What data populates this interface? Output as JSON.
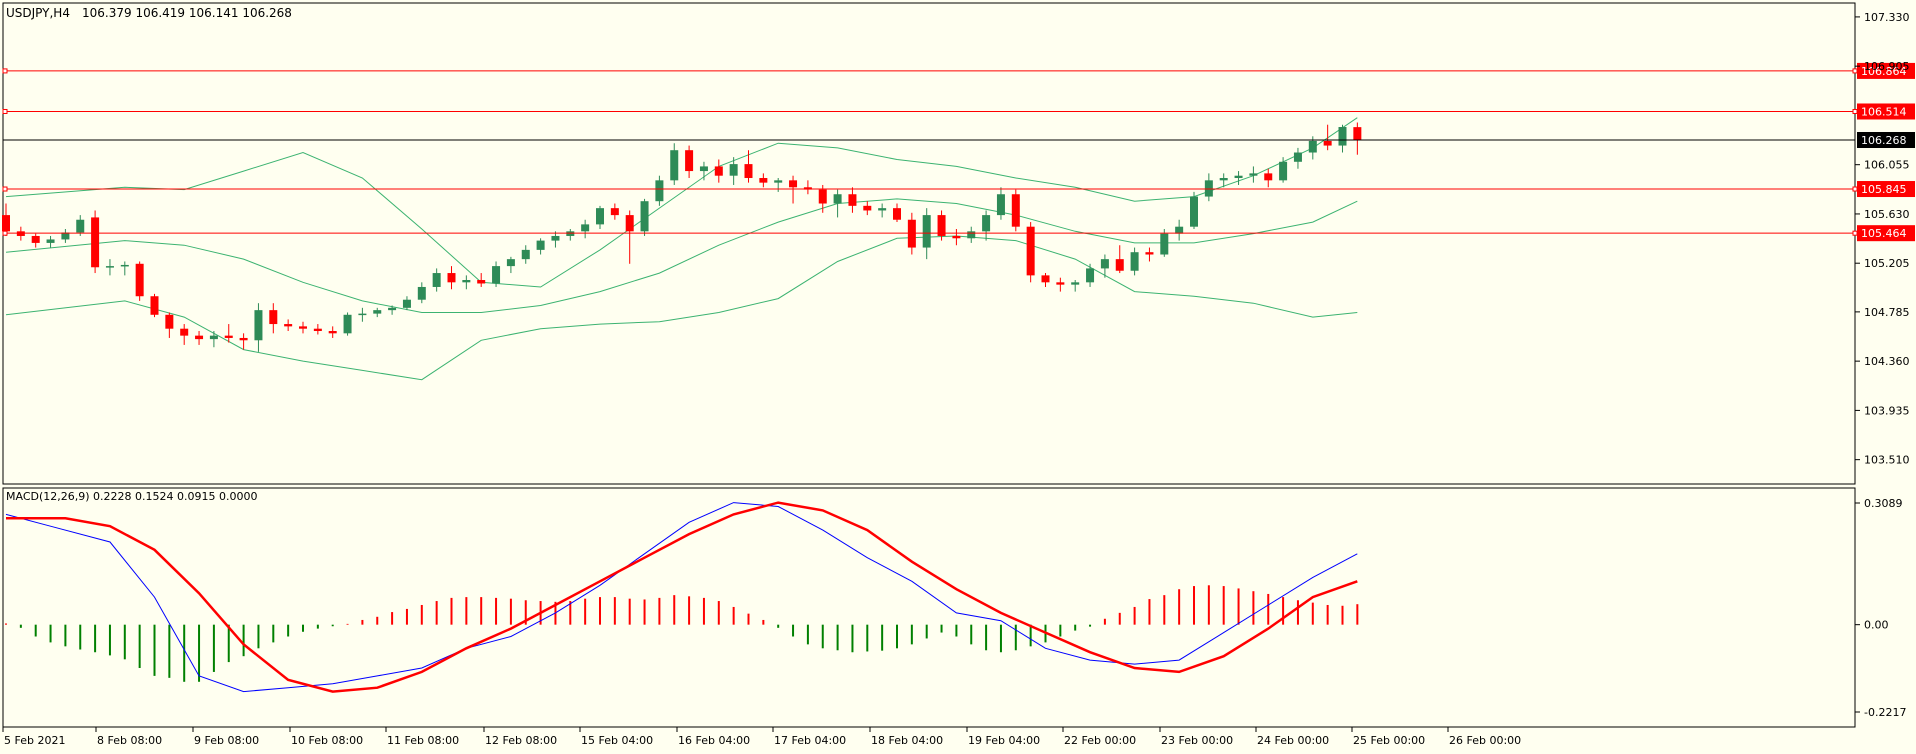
{
  "header": {
    "symbol": "USDJPY,H4",
    "ohlc": "106.379 106.419 106.141 106.268"
  },
  "macd_header": "MACD(12,26,9) 0.2228 0.1524 0.0915 0.0000",
  "colors": {
    "background": "#FFFFF0",
    "bull": "#2E8B57",
    "bear": "#FF0000",
    "band": "#3CB371",
    "macd_line": "#0000FF",
    "signal_line": "#FF0000",
    "hist_pos": "#FF0000",
    "hist_neg": "#008000",
    "level": "#FF0000",
    "current": "#000000"
  },
  "chart_data": [
    {
      "type": "candlestick",
      "title": "USDJPY,H4",
      "ylim": [
        103.3,
        107.45
      ],
      "y_ticks": [
        "107.330",
        "106.905",
        "106.055",
        "105.630",
        "105.205",
        "104.785",
        "104.360",
        "103.935",
        "103.510"
      ],
      "x_labels": [
        "5 Feb 2021",
        "8 Feb 08:00",
        "9 Feb 08:00",
        "10 Feb 08:00",
        "11 Feb 08:00",
        "12 Feb 08:00",
        "15 Feb 04:00",
        "16 Feb 04:00",
        "17 Feb 04:00",
        "18 Feb 04:00",
        "19 Feb 04:00",
        "22 Feb 00:00",
        "23 Feb 00:00",
        "24 Feb 00:00",
        "25 Feb 00:00",
        "26 Feb 00:00"
      ],
      "levels": [
        106.864,
        106.514,
        105.845,
        105.464
      ],
      "level_labels": [
        "106.864",
        "106.514",
        "105.845",
        "105.464"
      ],
      "current_price": 106.268,
      "current_label": "106.268",
      "candles": [
        [
          105.62,
          105.72,
          105.44,
          105.48
        ],
        [
          105.48,
          105.52,
          105.4,
          105.44
        ],
        [
          105.44,
          105.46,
          105.34,
          105.38
        ],
        [
          105.38,
          105.44,
          105.34,
          105.41
        ],
        [
          105.41,
          105.5,
          105.38,
          105.47
        ],
        [
          105.47,
          105.62,
          105.44,
          105.58
        ],
        [
          105.6,
          105.66,
          105.12,
          105.17
        ],
        [
          105.17,
          105.24,
          105.1,
          105.18
        ],
        [
          105.18,
          105.22,
          105.1,
          105.19
        ],
        [
          105.2,
          105.22,
          104.88,
          104.92
        ],
        [
          104.92,
          104.94,
          104.74,
          104.76
        ],
        [
          104.76,
          104.78,
          104.56,
          104.64
        ],
        [
          104.64,
          104.68,
          104.5,
          104.58
        ],
        [
          104.58,
          104.62,
          104.5,
          104.55
        ],
        [
          104.55,
          104.62,
          104.48,
          104.58
        ],
        [
          104.58,
          104.68,
          104.52,
          104.56
        ],
        [
          104.56,
          104.6,
          104.46,
          104.54
        ],
        [
          104.54,
          104.86,
          104.44,
          104.8
        ],
        [
          104.8,
          104.86,
          104.6,
          104.68
        ],
        [
          104.68,
          104.72,
          104.62,
          104.66
        ],
        [
          104.66,
          104.7,
          104.6,
          104.64
        ],
        [
          104.64,
          104.68,
          104.59,
          104.62
        ],
        [
          104.62,
          104.66,
          104.56,
          104.6
        ],
        [
          104.6,
          104.78,
          104.58,
          104.76
        ],
        [
          104.76,
          104.82,
          104.7,
          104.77
        ],
        [
          104.77,
          104.82,
          104.74,
          104.8
        ],
        [
          104.8,
          104.84,
          104.76,
          104.82
        ],
        [
          104.82,
          104.92,
          104.8,
          104.89
        ],
        [
          104.89,
          105.04,
          104.86,
          105.0
        ],
        [
          105.0,
          105.16,
          104.96,
          105.12
        ],
        [
          105.12,
          105.18,
          104.98,
          105.04
        ],
        [
          105.04,
          105.1,
          104.98,
          105.06
        ],
        [
          105.06,
          105.12,
          105.0,
          105.03
        ],
        [
          105.03,
          105.22,
          105.0,
          105.18
        ],
        [
          105.18,
          105.26,
          105.12,
          105.24
        ],
        [
          105.24,
          105.36,
          105.2,
          105.32
        ],
        [
          105.32,
          105.42,
          105.28,
          105.4
        ],
        [
          105.4,
          105.48,
          105.34,
          105.44
        ],
        [
          105.44,
          105.5,
          105.4,
          105.48
        ],
        [
          105.48,
          105.58,
          105.42,
          105.54
        ],
        [
          105.54,
          105.7,
          105.5,
          105.68
        ],
        [
          105.68,
          105.72,
          105.58,
          105.62
        ],
        [
          105.62,
          105.66,
          105.2,
          105.48
        ],
        [
          105.48,
          105.76,
          105.44,
          105.74
        ],
        [
          105.74,
          105.96,
          105.7,
          105.92
        ],
        [
          105.92,
          106.24,
          105.88,
          106.18
        ],
        [
          106.18,
          106.22,
          105.94,
          106.0
        ],
        [
          106.0,
          106.08,
          105.92,
          106.04
        ],
        [
          106.04,
          106.1,
          105.9,
          105.96
        ],
        [
          105.96,
          106.12,
          105.88,
          106.06
        ],
        [
          106.06,
          106.18,
          105.9,
          105.94
        ],
        [
          105.94,
          105.98,
          105.86,
          105.9
        ],
        [
          105.9,
          105.94,
          105.82,
          105.92
        ],
        [
          105.92,
          105.96,
          105.72,
          105.86
        ],
        [
          105.86,
          105.92,
          105.8,
          105.84
        ],
        [
          105.84,
          105.88,
          105.64,
          105.72
        ],
        [
          105.72,
          105.84,
          105.6,
          105.8
        ],
        [
          105.8,
          105.86,
          105.64,
          105.7
        ],
        [
          105.7,
          105.74,
          105.62,
          105.66
        ],
        [
          105.66,
          105.72,
          105.6,
          105.68
        ],
        [
          105.68,
          105.72,
          105.56,
          105.58
        ],
        [
          105.58,
          105.64,
          105.28,
          105.34
        ],
        [
          105.34,
          105.68,
          105.24,
          105.62
        ],
        [
          105.62,
          105.66,
          105.4,
          105.44
        ],
        [
          105.44,
          105.5,
          105.36,
          105.42
        ],
        [
          105.42,
          105.52,
          105.38,
          105.48
        ],
        [
          105.48,
          105.66,
          105.4,
          105.62
        ],
        [
          105.62,
          105.86,
          105.58,
          105.8
        ],
        [
          105.8,
          105.84,
          105.48,
          105.52
        ],
        [
          105.52,
          105.56,
          105.04,
          105.1
        ],
        [
          105.1,
          105.12,
          105.0,
          105.04
        ],
        [
          105.04,
          105.08,
          104.96,
          105.02
        ],
        [
          105.02,
          105.06,
          104.96,
          105.04
        ],
        [
          105.04,
          105.2,
          105.0,
          105.16
        ],
        [
          105.16,
          105.28,
          105.08,
          105.24
        ],
        [
          105.24,
          105.36,
          105.12,
          105.14
        ],
        [
          105.14,
          105.34,
          105.1,
          105.3
        ],
        [
          105.3,
          105.34,
          105.22,
          105.28
        ],
        [
          105.28,
          105.5,
          105.26,
          105.46
        ],
        [
          105.46,
          105.58,
          105.4,
          105.52
        ],
        [
          105.52,
          105.82,
          105.5,
          105.78
        ],
        [
          105.78,
          105.98,
          105.74,
          105.92
        ],
        [
          105.92,
          105.98,
          105.86,
          105.94
        ],
        [
          105.94,
          106.0,
          105.88,
          105.96
        ],
        [
          105.96,
          106.04,
          105.9,
          105.98
        ],
        [
          105.98,
          106.02,
          105.86,
          105.92
        ],
        [
          105.92,
          106.12,
          105.9,
          106.08
        ],
        [
          106.08,
          106.2,
          106.02,
          106.16
        ],
        [
          106.16,
          106.3,
          106.1,
          106.26
        ],
        [
          106.26,
          106.4,
          106.18,
          106.22
        ],
        [
          106.22,
          106.4,
          106.16,
          106.38
        ],
        [
          106.379,
          106.419,
          106.141,
          106.268
        ]
      ],
      "bollinger": {
        "upper": [
          [
            0,
            105.78
          ],
          [
            8,
            105.86
          ],
          [
            12,
            105.84
          ],
          [
            16,
            106.0
          ],
          [
            20,
            106.16
          ],
          [
            24,
            105.94
          ],
          [
            28,
            105.5
          ],
          [
            32,
            105.04
          ],
          [
            36,
            105.0
          ],
          [
            40,
            105.32
          ],
          [
            44,
            105.68
          ],
          [
            48,
            106.04
          ],
          [
            52,
            106.24
          ],
          [
            56,
            106.2
          ],
          [
            60,
            106.1
          ],
          [
            64,
            106.04
          ],
          [
            68,
            105.94
          ],
          [
            72,
            105.86
          ],
          [
            76,
            105.74
          ],
          [
            80,
            105.78
          ],
          [
            84,
            105.96
          ],
          [
            88,
            106.2
          ],
          [
            91,
            106.46
          ]
        ],
        "middle": [
          [
            0,
            105.3
          ],
          [
            8,
            105.4
          ],
          [
            12,
            105.36
          ],
          [
            16,
            105.24
          ],
          [
            20,
            105.04
          ],
          [
            24,
            104.88
          ],
          [
            28,
            104.78
          ],
          [
            32,
            104.78
          ],
          [
            36,
            104.84
          ],
          [
            40,
            104.96
          ],
          [
            44,
            105.12
          ],
          [
            48,
            105.36
          ],
          [
            52,
            105.56
          ],
          [
            56,
            105.72
          ],
          [
            60,
            105.76
          ],
          [
            64,
            105.72
          ],
          [
            68,
            105.62
          ],
          [
            72,
            105.48
          ],
          [
            76,
            105.38
          ],
          [
            80,
            105.38
          ],
          [
            84,
            105.46
          ],
          [
            88,
            105.56
          ],
          [
            91,
            105.74
          ]
        ],
        "lower": [
          [
            0,
            104.76
          ],
          [
            8,
            104.88
          ],
          [
            12,
            104.74
          ],
          [
            16,
            104.46
          ],
          [
            20,
            104.36
          ],
          [
            24,
            104.28
          ],
          [
            28,
            104.2
          ],
          [
            32,
            104.54
          ],
          [
            36,
            104.64
          ],
          [
            40,
            104.68
          ],
          [
            44,
            104.7
          ],
          [
            48,
            104.78
          ],
          [
            52,
            104.9
          ],
          [
            56,
            105.22
          ],
          [
            60,
            105.42
          ],
          [
            64,
            105.44
          ],
          [
            68,
            105.4
          ],
          [
            72,
            105.24
          ],
          [
            76,
            104.96
          ],
          [
            80,
            104.92
          ],
          [
            84,
            104.86
          ],
          [
            88,
            104.74
          ],
          [
            91,
            104.78
          ]
        ]
      }
    },
    {
      "type": "macd",
      "title": "MACD(12,26,9) 0.2228 0.1524 0.0915 0.0000",
      "ylim": [
        -0.2217,
        0.3089
      ],
      "y_ticks": [
        "0.3089",
        "0.00",
        "-0.2217"
      ],
      "macd": [
        [
          0,
          0.28
        ],
        [
          3,
          0.25
        ],
        [
          7,
          0.21
        ],
        [
          10,
          0.07
        ],
        [
          13,
          -0.13
        ],
        [
          16,
          -0.17
        ],
        [
          19,
          -0.16
        ],
        [
          22,
          -0.15
        ],
        [
          25,
          -0.13
        ],
        [
          28,
          -0.11
        ],
        [
          31,
          -0.06
        ],
        [
          34,
          -0.03
        ],
        [
          37,
          0.03
        ],
        [
          40,
          0.1
        ],
        [
          43,
          0.18
        ],
        [
          46,
          0.26
        ],
        [
          49,
          0.31
        ],
        [
          52,
          0.3
        ],
        [
          55,
          0.24
        ],
        [
          58,
          0.17
        ],
        [
          61,
          0.11
        ],
        [
          64,
          0.03
        ],
        [
          67,
          0.01
        ],
        [
          70,
          -0.06
        ],
        [
          73,
          -0.09
        ],
        [
          76,
          -0.1
        ],
        [
          79,
          -0.09
        ],
        [
          82,
          -0.02
        ],
        [
          85,
          0.05
        ],
        [
          88,
          0.12
        ],
        [
          91,
          0.18
        ]
      ],
      "signal": [
        [
          0,
          0.27
        ],
        [
          4,
          0.27
        ],
        [
          7,
          0.25
        ],
        [
          10,
          0.19
        ],
        [
          13,
          0.08
        ],
        [
          16,
          -0.05
        ],
        [
          19,
          -0.14
        ],
        [
          22,
          -0.17
        ],
        [
          25,
          -0.16
        ],
        [
          28,
          -0.12
        ],
        [
          31,
          -0.06
        ],
        [
          34,
          -0.01
        ],
        [
          37,
          0.05
        ],
        [
          40,
          0.11
        ],
        [
          43,
          0.17
        ],
        [
          46,
          0.23
        ],
        [
          49,
          0.28
        ],
        [
          52,
          0.31
        ],
        [
          55,
          0.29
        ],
        [
          58,
          0.24
        ],
        [
          61,
          0.16
        ],
        [
          64,
          0.09
        ],
        [
          67,
          0.03
        ],
        [
          70,
          -0.02
        ],
        [
          73,
          -0.07
        ],
        [
          76,
          -0.11
        ],
        [
          79,
          -0.12
        ],
        [
          82,
          -0.08
        ],
        [
          85,
          -0.01
        ],
        [
          88,
          0.07
        ],
        [
          91,
          0.11
        ]
      ],
      "histogram": [
        0.003,
        -0.008,
        -0.03,
        -0.045,
        -0.055,
        -0.063,
        -0.07,
        -0.078,
        -0.088,
        -0.11,
        -0.13,
        -0.135,
        -0.145,
        -0.145,
        -0.12,
        -0.095,
        -0.08,
        -0.06,
        -0.045,
        -0.03,
        -0.018,
        -0.01,
        -0.004,
        0.002,
        0.012,
        0.02,
        0.032,
        0.04,
        0.05,
        0.06,
        0.068,
        0.07,
        0.07,
        0.068,
        0.066,
        0.062,
        0.06,
        0.058,
        0.06,
        0.066,
        0.07,
        0.07,
        0.066,
        0.064,
        0.068,
        0.075,
        0.072,
        0.068,
        0.06,
        0.045,
        0.028,
        0.012,
        -0.008,
        -0.03,
        -0.05,
        -0.06,
        -0.065,
        -0.07,
        -0.068,
        -0.066,
        -0.06,
        -0.05,
        -0.035,
        -0.02,
        -0.03,
        -0.05,
        -0.065,
        -0.07,
        -0.065,
        -0.055,
        -0.045,
        -0.03,
        -0.015,
        -0.005,
        0.015,
        0.03,
        0.045,
        0.065,
        0.075,
        0.09,
        0.098,
        0.1,
        0.098,
        0.092,
        0.085,
        0.078,
        0.07,
        0.062,
        0.056,
        0.05,
        0.048,
        0.052
      ]
    }
  ]
}
